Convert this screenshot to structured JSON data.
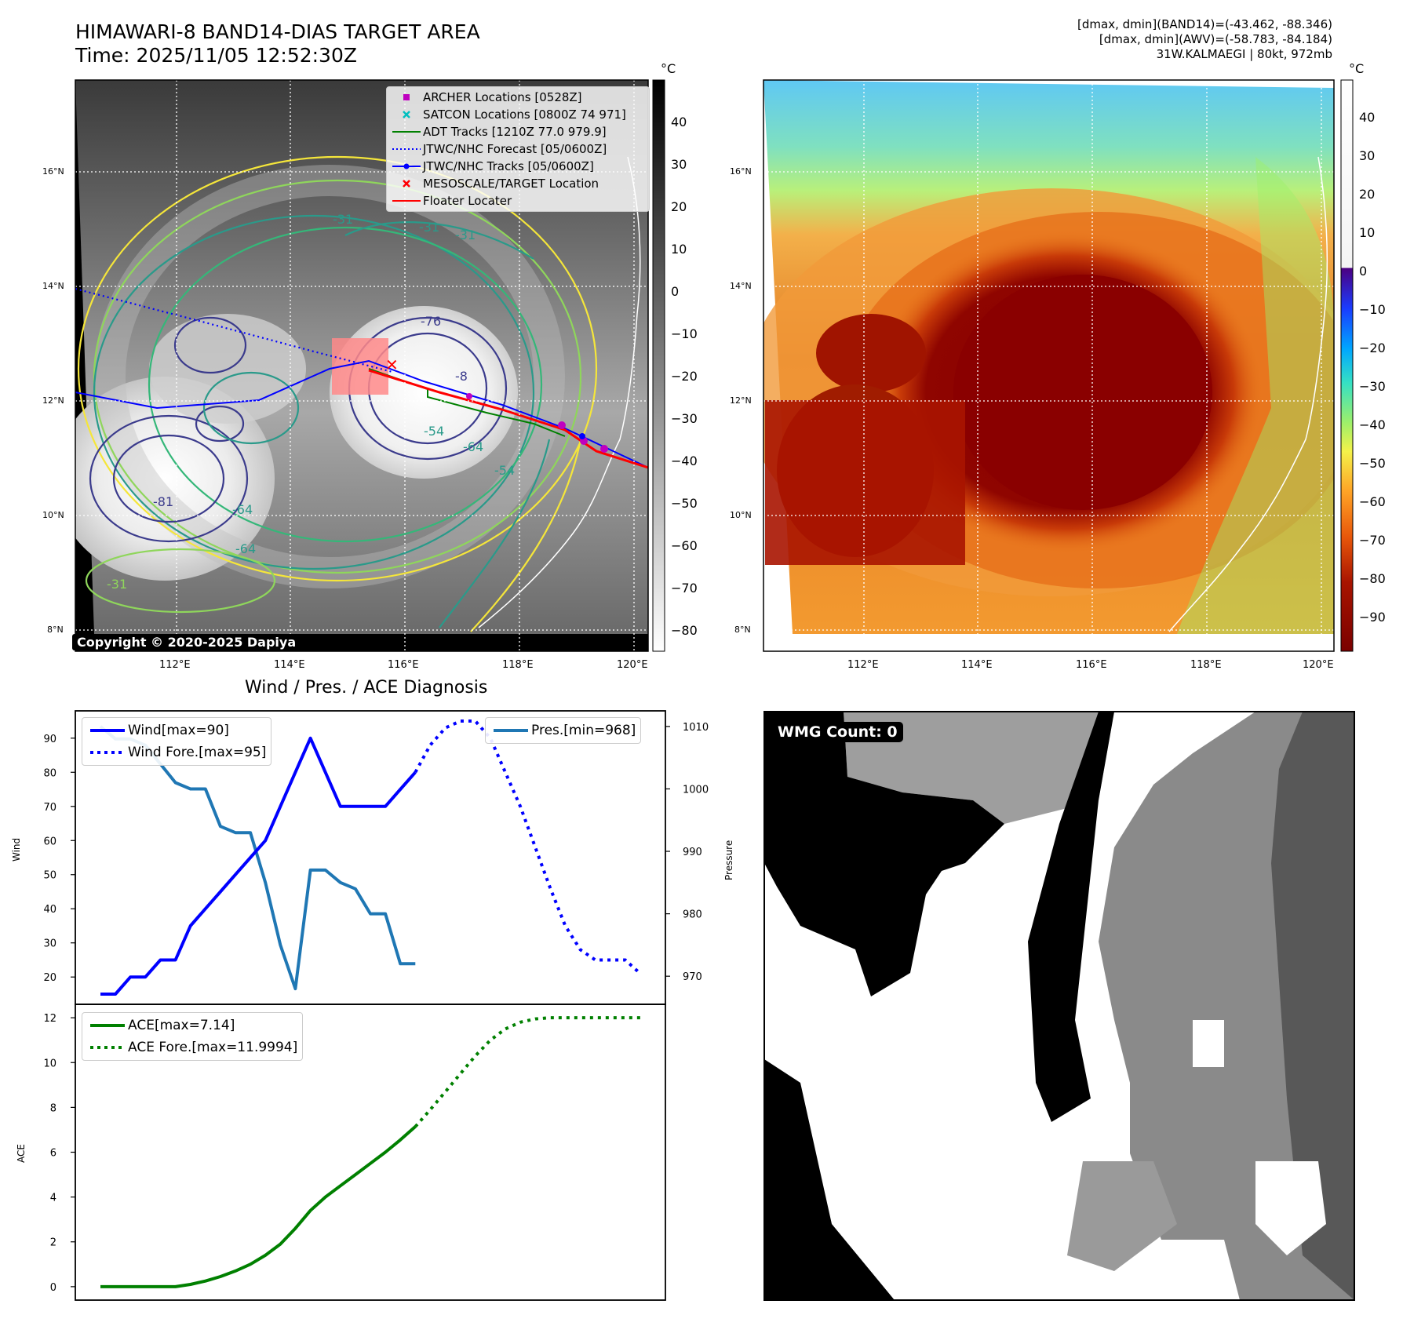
{
  "header": {
    "title_line1": "HIMAWARI-8 BAND14-DIAS TARGET AREA",
    "title_line2": "Time: 2025/11/05 12:52:30Z",
    "info_line1": "[dmax, dmin](BAND14)=(-43.462, -88.346)",
    "info_line2": "[dmax, dmin](AWV)=(-58.783, -84.184)",
    "info_line3": "31W.KALMAEGI | 80kt, 972mb"
  },
  "map_panels": {
    "lon_ticks": [
      "112°E",
      "114°E",
      "116°E",
      "118°E",
      "120°E"
    ],
    "lat_ticks": [
      "16°N",
      "14°N",
      "12°N",
      "10°N",
      "8°N"
    ],
    "copyright": "Copyright © 2020-2025 Dapiya",
    "contour_labels": [
      "-31",
      "-31",
      "-31",
      "-76",
      "-64",
      "-64",
      "-54",
      "-54",
      "-81",
      "-31",
      "-64",
      "-8"
    ]
  },
  "colorbar_band14": {
    "unit": "°C",
    "ticks": [
      "40",
      "30",
      "20",
      "10",
      "0",
      "−10",
      "−20",
      "−30",
      "−40",
      "−50",
      "−60",
      "−70",
      "−80"
    ]
  },
  "colorbar_awv": {
    "unit": "°C",
    "ticks": [
      "40",
      "30",
      "20",
      "10",
      "0",
      "−10",
      "−20",
      "−30",
      "−40",
      "−50",
      "−60",
      "−70",
      "−80",
      "−90"
    ]
  },
  "map_legend": [
    {
      "label": "ARCHER Locations [0528Z]",
      "color": "#bf00bf",
      "style": "square"
    },
    {
      "label": "SATCON Locations [0800Z 74 971]",
      "color": "#00bfbf",
      "style": "x"
    },
    {
      "label": "ADT Tracks [1210Z 77.0 979.9]",
      "color": "#008000",
      "style": "line"
    },
    {
      "label": "JTWC/NHC Forecast [05/0600Z]",
      "color": "#0000ff",
      "style": "dotted"
    },
    {
      "label": "JTWC/NHC Tracks [05/0600Z]",
      "color": "#0000ff",
      "style": "line-dot"
    },
    {
      "label": "MESOSCALE/TARGET Location",
      "color": "#ff0000",
      "style": "x"
    },
    {
      "label": "Floater Locater",
      "color": "#ff0000",
      "style": "line"
    }
  ],
  "wmg": {
    "label": "WMG Count: 0"
  },
  "chart_data": [
    {
      "type": "line",
      "title": "Wind / Pres. / ACE Diagnosis",
      "ylabel": "Wind",
      "ylim": [
        12,
        98
      ],
      "yticks": [
        20,
        30,
        40,
        50,
        60,
        70,
        80,
        90
      ],
      "x": [
        0,
        1,
        2,
        3,
        4,
        5,
        6,
        7,
        8,
        9,
        10,
        11,
        12,
        13,
        14,
        15,
        16,
        17,
        18,
        19,
        20,
        21,
        22,
        23,
        24,
        25,
        26,
        27,
        28,
        29,
        30,
        31,
        32,
        33,
        34,
        35,
        36
      ],
      "series": [
        {
          "name": "Wind[max=90]",
          "legend": "Wind[max=90]",
          "color": "#0000ff",
          "style": "solid",
          "x": [
            0,
            1,
            2,
            3,
            4,
            5,
            6,
            7,
            8,
            9,
            10,
            11,
            12,
            13,
            14,
            15,
            16,
            17,
            18,
            19,
            20,
            21
          ],
          "values": [
            15,
            15,
            20,
            20,
            25,
            25,
            35,
            40,
            45,
            50,
            55,
            60,
            70,
            80,
            90,
            80,
            70,
            70,
            70,
            70,
            75,
            80
          ]
        },
        {
          "name": "Wind Fore.[max=95]",
          "legend": "Wind Fore.[max=95]",
          "color": "#0000ff",
          "style": "dotted",
          "x": [
            21,
            22,
            23,
            24,
            25,
            26,
            27,
            28,
            29,
            30,
            31,
            32,
            33,
            34,
            35,
            36
          ],
          "values": [
            80,
            88,
            93,
            95,
            95,
            90,
            80,
            70,
            58,
            46,
            35,
            28,
            25,
            25,
            25,
            21
          ]
        }
      ],
      "secondary_axis": {
        "ylabel": "Pressure",
        "ylim": [
          965.5,
          1012.5
        ],
        "yticks": [
          970,
          980,
          990,
          1000,
          1010
        ],
        "series": [
          {
            "name": "Pres.[min=968]",
            "legend": "Pres.[min=968]",
            "color": "#1f77b4",
            "style": "solid",
            "x": [
              0,
              1,
              2,
              3,
              4,
              5,
              6,
              7,
              8,
              9,
              10,
              11,
              12,
              13,
              14,
              15,
              16,
              17,
              18,
              19,
              20,
              21
            ],
            "values": [
              1010,
              1008,
              1008,
              1007,
              1004,
              1001,
              1000,
              1000,
              994,
              993,
              993,
              985,
              975,
              968,
              987,
              987,
              985,
              984,
              980,
              980,
              972,
              972
            ]
          }
        ]
      }
    },
    {
      "type": "line",
      "title": "",
      "ylabel": "ACE",
      "ylim": [
        -0.6,
        12.6
      ],
      "yticks": [
        0,
        2,
        4,
        6,
        8,
        10,
        12
      ],
      "x": [
        0,
        1,
        2,
        3,
        4,
        5,
        6,
        7,
        8,
        9,
        10,
        11,
        12,
        13,
        14,
        15,
        16,
        17,
        18,
        19,
        20,
        21,
        22,
        23,
        24,
        25,
        26,
        27,
        28,
        29,
        30,
        31,
        32,
        33,
        34,
        35,
        36
      ],
      "series": [
        {
          "name": "ACE[max=7.14]",
          "legend": "ACE[max=7.14]",
          "color": "#008000",
          "style": "solid",
          "x": [
            0,
            1,
            2,
            3,
            4,
            5,
            6,
            7,
            8,
            9,
            10,
            11,
            12,
            13,
            14,
            15,
            16,
            17,
            18,
            19,
            20,
            21
          ],
          "values": [
            0,
            0,
            0,
            0,
            0,
            0,
            0.1,
            0.25,
            0.45,
            0.7,
            1.0,
            1.4,
            1.9,
            2.6,
            3.4,
            4.0,
            4.5,
            5.0,
            5.5,
            6.0,
            6.55,
            7.14
          ]
        },
        {
          "name": "ACE Fore.[max=11.9994]",
          "legend": "ACE Fore.[max=11.9994]",
          "color": "#008000",
          "style": "dotted",
          "x": [
            21,
            22,
            23,
            24,
            25,
            26,
            27,
            28,
            29,
            30,
            31,
            32,
            33,
            34,
            35,
            36
          ],
          "values": [
            7.14,
            7.9,
            8.7,
            9.5,
            10.3,
            11.0,
            11.5,
            11.8,
            11.95,
            12.0,
            12.0,
            12.0,
            12.0,
            12.0,
            12.0,
            12.0
          ]
        }
      ]
    }
  ]
}
